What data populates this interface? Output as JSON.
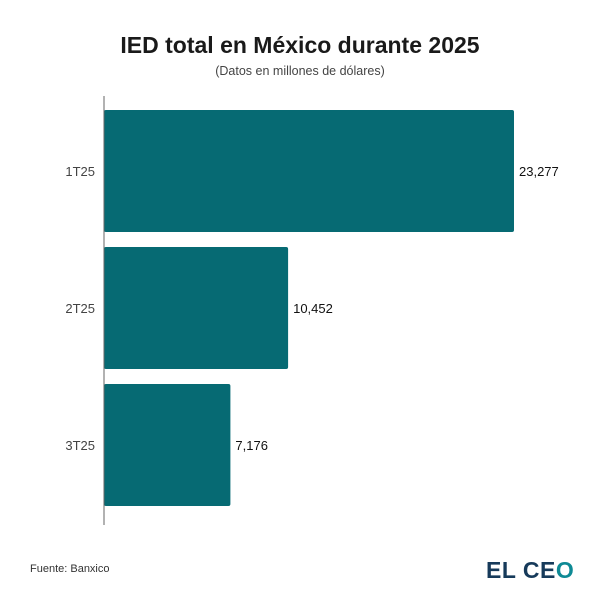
{
  "chart_data": {
    "type": "bar",
    "orientation": "horizontal",
    "title": "IED total en México durante 2025",
    "subtitle": "(Datos en millones de dólares)",
    "categories": [
      "1T25",
      "2T25",
      "3T25"
    ],
    "values": [
      23277,
      10452,
      7176
    ],
    "value_labels": [
      "23,277",
      "10,452",
      "7,176"
    ],
    "xlim": [
      0,
      23277
    ],
    "grid": false,
    "bar_color": "#066a73"
  },
  "footer": {
    "source": "Fuente: Banxico",
    "logo_text": "EL CEO",
    "logo_main": "EL CE",
    "logo_o": "O"
  }
}
